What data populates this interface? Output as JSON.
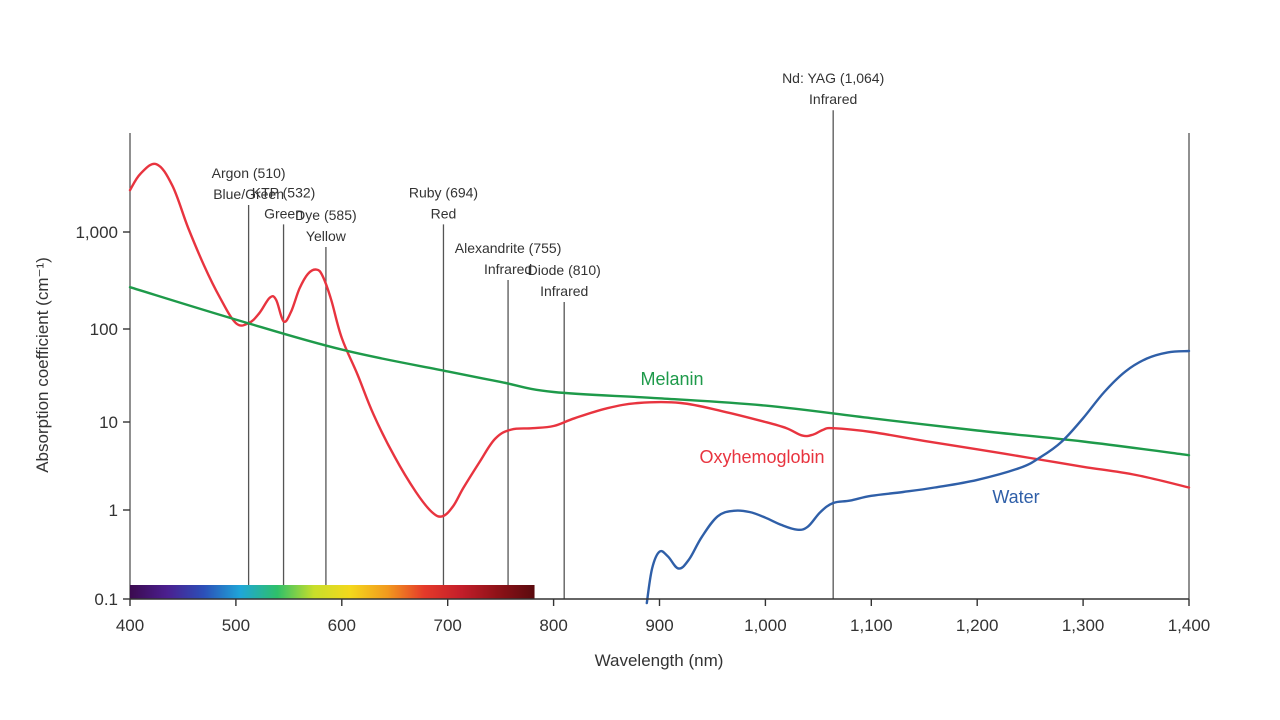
{
  "chart_data": {
    "type": "line",
    "title": "",
    "xlabel": "Wavelength (nm)",
    "ylabel": "Absorption coefficient (cm⁻¹)",
    "xlim": [
      400,
      1400
    ],
    "ylim": [
      0.1,
      5000
    ],
    "y_scale": "log",
    "grid": false,
    "x_ticks": [
      400,
      500,
      600,
      700,
      800,
      900,
      1000,
      1100,
      1200,
      1300,
      1400
    ],
    "x_tick_labels": [
      "400",
      "500",
      "600",
      "700",
      "800",
      "900",
      "1,000",
      "1,100",
      "1,200",
      "1,300",
      "1,400"
    ],
    "y_ticks": [
      0.1,
      1,
      10,
      100,
      1000
    ],
    "y_tick_labels": [
      "0.1",
      "1",
      "10",
      "100",
      "1,000"
    ],
    "series": [
      {
        "name": "Oxyhemoglobin",
        "color": "#e8343f",
        "x": [
          400,
          410,
          425,
          440,
          455,
          470,
          485,
          500,
          512,
          522,
          532,
          538,
          545,
          552,
          560,
          568,
          576,
          582,
          590,
          600,
          615,
          630,
          650,
          670,
          685,
          695,
          705,
          715,
          730,
          745,
          760,
          780,
          800,
          820,
          850,
          880,
          920,
          960,
          1000,
          1020,
          1035,
          1045,
          1055,
          1064,
          1100,
          1150,
          1200,
          1250,
          1300,
          1350,
          1400
        ],
        "y": [
          2700,
          4000,
          5000,
          3000,
          1100,
          450,
          210,
          115,
          115,
          145,
          210,
          200,
          120,
          150,
          260,
          370,
          410,
          350,
          200,
          80,
          32,
          12,
          4,
          1.6,
          0.95,
          0.85,
          1.1,
          1.8,
          3.5,
          6.5,
          8.2,
          8.5,
          9,
          11,
          14,
          16,
          16,
          13,
          10,
          8.5,
          7,
          7.2,
          8.2,
          8.5,
          7.7,
          6.1,
          4.9,
          3.9,
          3.1,
          2.5,
          1.8
        ]
      },
      {
        "name": "Melanin",
        "color": "#1e9a4a",
        "x": [
          400,
          500,
          600,
          700,
          750,
          800,
          900,
          1000,
          1100,
          1200,
          1300,
          1400
        ],
        "y": [
          270,
          125,
          60,
          35,
          27,
          21,
          18,
          15,
          11,
          8,
          6,
          4.2
        ]
      },
      {
        "name": "Water",
        "color": "#2f5fa8",
        "x": [
          888,
          893,
          900,
          908,
          918,
          928,
          940,
          955,
          970,
          985,
          1000,
          1015,
          1030,
          1040,
          1052,
          1064,
          1080,
          1100,
          1130,
          1160,
          1200,
          1240,
          1260,
          1280,
          1300,
          1320,
          1340,
          1360,
          1380,
          1400
        ],
        "y": [
          0.09,
          0.22,
          0.34,
          0.3,
          0.22,
          0.28,
          0.5,
          0.85,
          0.98,
          0.95,
          0.82,
          0.68,
          0.6,
          0.65,
          0.95,
          1.2,
          1.28,
          1.45,
          1.6,
          1.8,
          2.2,
          3,
          4,
          6,
          11,
          21,
          35,
          48,
          56,
          58
        ]
      }
    ],
    "laser_lines": [
      {
        "wavelength": 512,
        "top_value": 1900,
        "line1": "Argon (510)",
        "line2": "Blue/Green"
      },
      {
        "wavelength": 545,
        "top_value": 1200,
        "line1": "KTP (532)",
        "line2": "Green"
      },
      {
        "wavelength": 585,
        "top_value": 700,
        "line1": "Dye (585)",
        "line2": "Yellow"
      },
      {
        "wavelength": 696,
        "top_value": 1200,
        "line1": "Ruby (694)",
        "line2": "Red"
      },
      {
        "wavelength": 757,
        "top_value": 320,
        "line1": "Alexandrite (755)",
        "line2": "Infrared"
      },
      {
        "wavelength": 810,
        "top_value": 190,
        "line1": "Diode (810)",
        "line2": "Infrared"
      },
      {
        "wavelength": 1064,
        "top_value": 18000,
        "line1": "Nd: YAG (1,064)",
        "line2": "Infrared"
      }
    ],
    "boundary_lines": [
      400,
      1400
    ],
    "spectrum_bar": {
      "x_range": [
        400,
        782
      ],
      "colors": [
        "#3b0a4f",
        "#4b1f8f",
        "#2c4fb8",
        "#1fa6d8",
        "#2ec06a",
        "#c8de2a",
        "#f4d81c",
        "#f29a1e",
        "#e53a2a",
        "#c41e2a",
        "#8e1218",
        "#5a0a0e"
      ]
    }
  }
}
